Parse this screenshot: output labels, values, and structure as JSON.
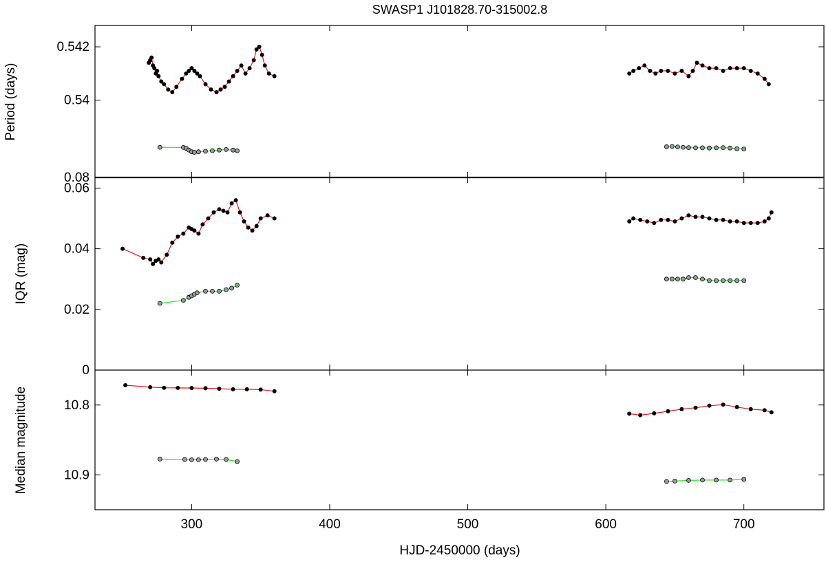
{
  "title": "SWASP1 J101828.70-315002.8",
  "xlabel": "HJD-2450000 (days)",
  "colors": {
    "fit_primary": "#e8141e",
    "fit_secondary": "#1ee81e",
    "point_primary": "#000000",
    "point_secondary_fill": "#9a9a9a"
  },
  "chart_data": [
    {
      "type": "scatter",
      "panel": "period",
      "ylabel": "Period (days)",
      "xlim": [
        230,
        758
      ],
      "x_ticks": [
        300,
        400,
        500,
        600,
        700
      ],
      "segments": [
        {
          "ylim": [
            0.5386,
            0.5428
          ],
          "y_ticks": [
            0.54,
            0.542
          ],
          "y_tick_labels": [
            "0.54",
            "0.542"
          ],
          "series": [
            {
              "name": "",
              "role": "primary",
              "x": [
                269,
                270,
                271,
                272,
                273,
                274,
                275,
                276,
                278,
                280,
                283,
                286,
                289,
                293,
                296,
                298,
                300,
                302,
                304,
                306,
                310,
                314,
                318,
                321,
                324,
                327,
                330,
                333,
                336,
                339,
                342,
                345,
                347,
                349,
                351,
                353,
                356,
                360
              ],
              "y": [
                0.5414,
                0.5415,
                0.5416,
                0.5413,
                0.5412,
                0.541,
                0.5411,
                0.5409,
                0.5407,
                0.5406,
                0.5404,
                0.5403,
                0.5405,
                0.5408,
                0.541,
                0.5411,
                0.5412,
                0.5411,
                0.541,
                0.5409,
                0.5406,
                0.5404,
                0.5403,
                0.5404,
                0.5405,
                0.5407,
                0.5409,
                0.5411,
                0.5413,
                0.541,
                0.5412,
                0.5415,
                0.5419,
                0.542,
                0.5417,
                0.5413,
                0.541,
                0.5409
              ]
            },
            {
              "name": "",
              "role": "primary",
              "x": [
                617,
                620,
                624,
                628,
                632,
                636,
                640,
                645,
                650,
                655,
                660,
                663,
                666,
                670,
                675,
                680,
                685,
                690,
                695,
                700,
                705,
                710,
                715,
                718
              ],
              "y": [
                0.541,
                0.5411,
                0.5412,
                0.5413,
                0.5411,
                0.541,
                0.5411,
                0.5411,
                0.541,
                0.5411,
                0.5409,
                0.5411,
                0.5414,
                0.5413,
                0.5412,
                0.5412,
                0.5411,
                0.5412,
                0.5412,
                0.5412,
                0.5411,
                0.541,
                0.5408,
                0.5406
              ]
            }
          ]
        },
        {
          "ylim": [
            0.08,
            0.115
          ],
          "y_ticks": [
            0.08
          ],
          "y_tick_labels": [
            "0.08"
          ],
          "series": [
            {
              "name": "",
              "role": "secondary",
              "x": [
                277,
                294,
                296,
                298,
                300,
                302,
                305,
                310,
                315,
                320,
                325,
                330,
                333
              ],
              "y": [
                0.1065,
                0.1063,
                0.1055,
                0.104,
                0.1025,
                0.102,
                0.1025,
                0.103,
                0.1035,
                0.104,
                0.1045,
                0.104,
                0.1035
              ]
            },
            {
              "name": "",
              "role": "secondary",
              "x": [
                644,
                648,
                652,
                656,
                660,
                665,
                670,
                675,
                680,
                685,
                690,
                695,
                700
              ],
              "y": [
                0.107,
                0.1072,
                0.1068,
                0.1065,
                0.1062,
                0.106,
                0.106,
                0.1058,
                0.106,
                0.1062,
                0.1058,
                0.1052,
                0.105
              ]
            }
          ]
        }
      ]
    },
    {
      "type": "scatter",
      "panel": "iqr",
      "ylabel": "IQR (mag)",
      "xlim": [
        230,
        758
      ],
      "ylim": [
        0,
        0.0635
      ],
      "y_ticks": [
        0,
        0.02,
        0.04,
        0.06
      ],
      "y_tick_labels": [
        "0",
        "0.02",
        "0.04",
        "0.06"
      ],
      "series": [
        {
          "name": "",
          "role": "primary",
          "x": [
            250,
            265,
            270,
            272,
            274,
            276,
            278,
            282,
            286,
            290,
            294,
            298,
            300,
            302,
            305,
            308,
            312,
            316,
            320,
            323,
            326,
            329,
            332,
            335,
            338,
            341,
            344,
            347,
            350,
            355,
            360
          ],
          "y": [
            0.04,
            0.037,
            0.0365,
            0.035,
            0.036,
            0.0365,
            0.0355,
            0.038,
            0.042,
            0.044,
            0.045,
            0.047,
            0.0465,
            0.046,
            0.045,
            0.048,
            0.05,
            0.052,
            0.053,
            0.0525,
            0.052,
            0.055,
            0.056,
            0.052,
            0.049,
            0.047,
            0.046,
            0.0475,
            0.05,
            0.051,
            0.05
          ]
        },
        {
          "name": "",
          "role": "primary",
          "x": [
            617,
            620,
            625,
            630,
            635,
            640,
            645,
            650,
            655,
            660,
            665,
            670,
            675,
            680,
            685,
            690,
            695,
            700,
            705,
            710,
            715,
            718,
            720
          ],
          "y": [
            0.049,
            0.05,
            0.0495,
            0.049,
            0.0485,
            0.0495,
            0.0495,
            0.049,
            0.05,
            0.051,
            0.0505,
            0.0505,
            0.05,
            0.0495,
            0.0495,
            0.049,
            0.049,
            0.0485,
            0.0485,
            0.0485,
            0.049,
            0.05,
            0.052
          ]
        },
        {
          "name": "",
          "role": "secondary",
          "x": [
            277,
            294,
            298,
            300,
            302,
            304,
            310,
            315,
            320,
            325,
            329,
            333
          ],
          "y": [
            0.022,
            0.023,
            0.024,
            0.0245,
            0.025,
            0.0255,
            0.026,
            0.026,
            0.026,
            0.0265,
            0.027,
            0.028
          ]
        },
        {
          "name": "",
          "role": "secondary",
          "x": [
            644,
            648,
            652,
            656,
            660,
            665,
            670,
            675,
            680,
            685,
            690,
            695,
            700
          ],
          "y": [
            0.03,
            0.03,
            0.03,
            0.03,
            0.0305,
            0.0305,
            0.03,
            0.0295,
            0.0295,
            0.0295,
            0.0295,
            0.0295,
            0.0295
          ]
        }
      ]
    },
    {
      "type": "scatter",
      "panel": "median",
      "ylabel": "Median magnitude",
      "xlim": [
        230,
        758
      ],
      "ylim": [
        10.75,
        10.95
      ],
      "y_ticks": [
        10.8,
        10.9
      ],
      "y_tick_labels": [
        "10.8",
        "10.9"
      ],
      "y_inverted": false,
      "series": [
        {
          "name": "",
          "role": "primary",
          "x": [
            252,
            270,
            280,
            290,
            300,
            310,
            320,
            330,
            340,
            350,
            360
          ],
          "y": [
            10.7717,
            10.7745,
            10.7753,
            10.7755,
            10.7757,
            10.776,
            10.7767,
            10.7775,
            10.7775,
            10.778,
            10.7803
          ]
        },
        {
          "name": "",
          "role": "primary",
          "x": [
            617,
            625,
            635,
            645,
            655,
            665,
            675,
            685,
            695,
            705,
            715,
            720
          ],
          "y": [
            10.8125,
            10.8145,
            10.812,
            10.809,
            10.806,
            10.804,
            10.801,
            10.7995,
            10.803,
            10.806,
            10.8075,
            10.8105
          ]
        },
        {
          "name": "",
          "role": "secondary",
          "x": [
            277,
            295,
            300,
            305,
            310,
            318,
            325,
            333
          ],
          "y": [
            10.8775,
            10.878,
            10.8785,
            10.8785,
            10.878,
            10.8775,
            10.878,
            10.881
          ]
        },
        {
          "name": "",
          "role": "secondary",
          "x": [
            644,
            650,
            660,
            670,
            680,
            690,
            700
          ],
          "y": [
            10.9095,
            10.909,
            10.908,
            10.9075,
            10.9075,
            10.9075,
            10.9065
          ]
        }
      ]
    }
  ]
}
